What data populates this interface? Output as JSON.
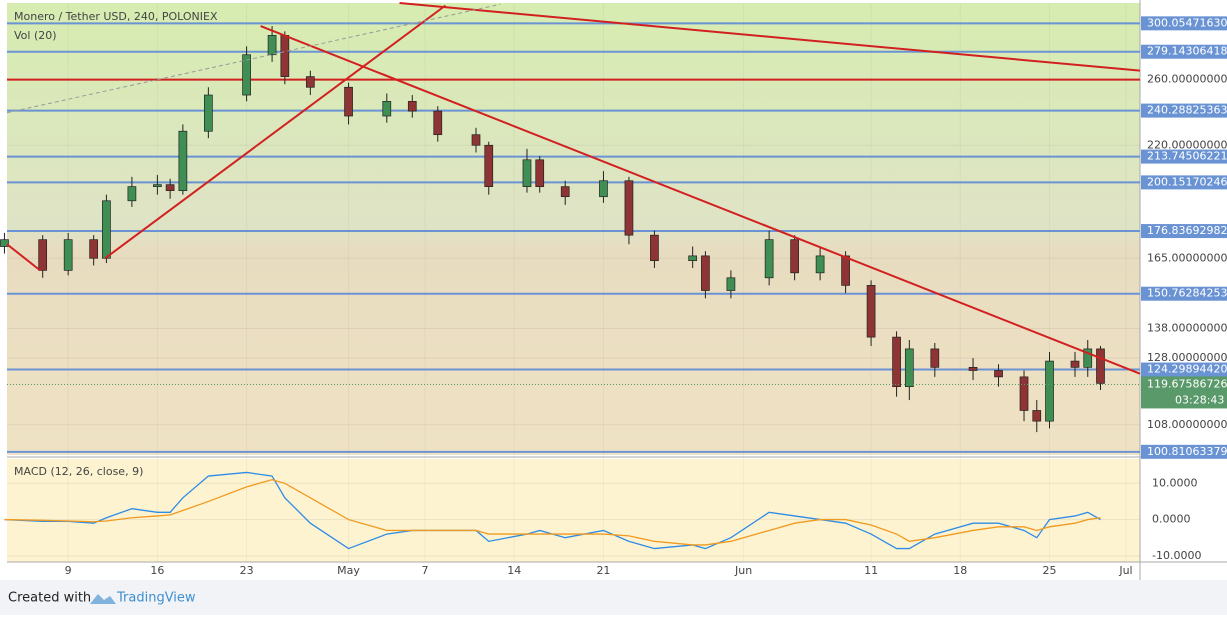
{
  "chart_data": {
    "type": "candlestick",
    "title": "Monero / Tether USD, 240, POLONIEX",
    "subtitle": "Vol (20)",
    "log_scale": true,
    "x": [
      4,
      7,
      9,
      11,
      12,
      14,
      16,
      17,
      18,
      20,
      23,
      25,
      26,
      28,
      31,
      34,
      36,
      38,
      41,
      42,
      45,
      46,
      48,
      51,
      53,
      55,
      58,
      59,
      61,
      64,
      66,
      68,
      70,
      72,
      74,
      75,
      77,
      80,
      82,
      84,
      85,
      86,
      88,
      89,
      90
    ],
    "open": [
      170,
      173,
      160,
      173,
      165,
      191,
      198,
      199,
      196,
      228,
      250,
      277,
      291,
      262,
      255,
      237,
      246,
      240,
      226,
      220,
      198,
      212,
      198,
      193,
      201,
      175,
      164,
      166,
      152,
      157,
      173,
      159,
      166,
      154,
      135,
      119,
      131,
      125,
      124,
      122,
      112,
      109,
      127,
      125,
      131
    ],
    "high": [
      176,
      175,
      176,
      175,
      194,
      203,
      204,
      202,
      232,
      255,
      283,
      298,
      294,
      266,
      258,
      251,
      250,
      243,
      230,
      222,
      218,
      214,
      201,
      206,
      203,
      177,
      170,
      168,
      160,
      177,
      175,
      170,
      168,
      156,
      137,
      134,
      133,
      128,
      126,
      124,
      115,
      130,
      130,
      134,
      132
    ],
    "low": [
      167,
      157,
      158,
      162,
      163,
      188,
      194,
      192,
      194,
      224,
      246,
      272,
      257,
      250,
      232,
      233,
      236,
      222,
      216,
      194,
      195,
      195,
      189,
      190,
      171,
      161,
      161,
      149,
      149,
      154,
      156,
      156,
      151,
      132,
      116,
      115,
      122,
      121,
      119,
      109,
      106,
      107,
      122,
      122,
      118
    ],
    "close": [
      173,
      160,
      173,
      165,
      191,
      198,
      199,
      196,
      228,
      250,
      277,
      291,
      262,
      255,
      237,
      246,
      240,
      226,
      220,
      198,
      212,
      198,
      193,
      201,
      175,
      164,
      166,
      152,
      157,
      173,
      159,
      166,
      154,
      135,
      119,
      131,
      125,
      124,
      122,
      112,
      109,
      127,
      125,
      131,
      120
    ],
    "up_color": "#3f8f55",
    "down_color": "#8e3434",
    "xlim": [
      4.2,
      93.1
    ],
    "xticks": [
      {
        "value": 9,
        "label": "9"
      },
      {
        "value": 16,
        "label": "16"
      },
      {
        "value": 23,
        "label": "23"
      },
      {
        "value": 31,
        "label": "May"
      },
      {
        "value": 37,
        "label": "7"
      },
      {
        "value": 44,
        "label": "14"
      },
      {
        "value": 51,
        "label": "21"
      },
      {
        "value": 62,
        "label": "Jun"
      },
      {
        "value": 72,
        "label": "11"
      },
      {
        "value": 79,
        "label": "18"
      },
      {
        "value": 86,
        "label": "25"
      },
      {
        "value": 92,
        "label": "Jul"
      }
    ],
    "ylim": [
      100,
      316
    ],
    "yticks": [
      {
        "value": 260,
        "label": "260.00000000"
      },
      {
        "value": 220,
        "label": "220.00000000"
      },
      {
        "value": 165,
        "label": "165.00000000"
      },
      {
        "value": 138,
        "label": "138.00000000"
      },
      {
        "value": 128,
        "label": "128.00000000"
      },
      {
        "value": 108,
        "label": "108.00000000"
      }
    ],
    "levels": [
      {
        "value": 300.0547163,
        "label": "300.05471630"
      },
      {
        "value": 279.14306418,
        "label": "279.14306418"
      },
      {
        "value": 240.28825363,
        "label": "240.28825363"
      },
      {
        "value": 213.74506221,
        "label": "213.74506221"
      },
      {
        "value": 200.15170246,
        "label": "200.15170246"
      },
      {
        "value": 176.83692982,
        "label": "176.83692982"
      },
      {
        "value": 150.76284253,
        "label": "150.76284253"
      },
      {
        "value": 124.2989442,
        "label": "124.29894420"
      },
      {
        "value": 100.81063379,
        "label": "100.81063379"
      }
    ],
    "level_color": "#6a93d4",
    "red_level": 260,
    "trend_lines": [
      {
        "color": "#d22020",
        "x": [
          35,
          93.1
        ],
        "y": [
          316,
          266
        ]
      },
      {
        "color": "#d22020",
        "x": [
          24.1,
          93.1
        ],
        "y": [
          298,
          123
        ]
      },
      {
        "color": "#d22020",
        "x": [
          11.9,
          38.6
        ],
        "y": [
          165,
          314
        ]
      },
      {
        "color": "#d22020",
        "x": [
          4.2,
          6.8
        ],
        "y": [
          171,
          160
        ]
      },
      {
        "color": "#999999",
        "dashed": true,
        "x": [
          4.2,
          42.9
        ],
        "y": [
          239,
          315
        ]
      }
    ],
    "last_price": {
      "value": 119.67586726,
      "label": "119.67586726"
    },
    "countdown": "03:28:43",
    "macd": {
      "title": "MACD (12, 26, close, 9)",
      "ylim": [
        -11.7,
        16.7
      ],
      "yticks": [
        {
          "value": 10,
          "label": "10.0000"
        },
        {
          "value": 0,
          "label": "0.0000"
        },
        {
          "value": -10,
          "label": "-10.0000"
        }
      ],
      "lines": [
        {
          "color": "#2e8ce6",
          "values": [
            0,
            -0.5,
            -0.5,
            -1,
            0.5,
            3,
            2,
            2,
            6,
            12,
            13,
            12,
            6,
            -1,
            -8,
            -4,
            -3,
            -3,
            -3,
            -6,
            -4,
            -3,
            -5,
            -3,
            -6,
            -8,
            -7,
            -8,
            -5,
            2,
            1,
            0,
            -1,
            -4,
            -8,
            -8,
            -4,
            -1,
            -1,
            -3,
            -5,
            0,
            1,
            2,
            0
          ]
        },
        {
          "color": "#f09a20",
          "values": [
            0,
            -0.2,
            -0.4,
            -0.6,
            -0.4,
            0.5,
            1,
            1.3,
            2.5,
            5,
            9,
            11,
            10,
            6,
            0,
            -3,
            -3,
            -3,
            -3,
            -4,
            -4,
            -4,
            -4,
            -4,
            -4.5,
            -6,
            -7,
            -7,
            -6,
            -3,
            -1,
            0,
            0,
            -1.5,
            -4,
            -6,
            -5,
            -3,
            -2,
            -2,
            -3,
            -2,
            -1,
            0,
            0.5
          ]
        }
      ]
    },
    "footer": {
      "created": "Created with",
      "brand": "TradingView"
    }
  }
}
